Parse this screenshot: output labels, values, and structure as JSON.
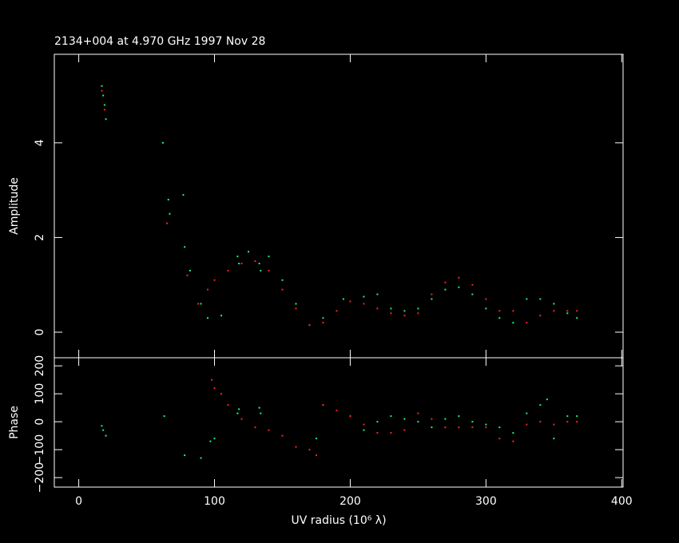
{
  "chart_data": [
    {
      "type": "scatter",
      "title": "2134+004 at 4.970 GHz 1997 Nov 28",
      "y_label": "Amplitude",
      "xlim": [
        -18,
        401
      ],
      "ylim": [
        -0.54,
        5.87
      ],
      "yticks": [
        0,
        2,
        4
      ],
      "series": [
        {
          "color": "#20f080",
          "x": [
            17,
            18,
            19,
            20,
            62,
            66,
            67,
            77,
            78,
            82,
            90,
            95,
            105,
            117,
            118,
            125,
            133,
            134,
            140,
            150,
            160,
            170,
            180,
            195,
            210,
            220,
            230,
            240,
            250,
            260,
            270,
            280,
            290,
            300,
            310,
            320,
            330,
            340,
            350,
            360,
            367
          ],
          "values": [
            5.2,
            5.0,
            4.8,
            4.5,
            4.0,
            2.8,
            2.5,
            2.9,
            1.8,
            1.3,
            0.6,
            0.3,
            0.35,
            1.6,
            1.45,
            1.7,
            1.45,
            1.3,
            1.6,
            1.1,
            0.6,
            0.15,
            0.3,
            0.7,
            0.75,
            0.8,
            0.5,
            0.45,
            0.5,
            0.7,
            0.9,
            0.95,
            0.8,
            0.5,
            0.3,
            0.2,
            0.7,
            0.7,
            0.6,
            0.4,
            0.3
          ]
        },
        {
          "color": "#ff2020",
          "x": [
            17,
            19,
            65,
            80,
            88,
            95,
            100,
            110,
            120,
            130,
            140,
            150,
            160,
            170,
            180,
            190,
            200,
            210,
            220,
            230,
            240,
            250,
            260,
            270,
            280,
            290,
            300,
            310,
            320,
            330,
            340,
            350,
            360,
            367
          ],
          "values": [
            5.1,
            4.7,
            2.3,
            1.2,
            0.6,
            0.9,
            1.1,
            1.3,
            1.45,
            1.5,
            1.3,
            0.9,
            0.5,
            0.15,
            0.2,
            0.45,
            0.65,
            0.6,
            0.5,
            0.4,
            0.35,
            0.4,
            0.8,
            1.05,
            1.15,
            1.0,
            0.7,
            0.45,
            0.45,
            0.2,
            0.35,
            0.45,
            0.45,
            0.45
          ]
        }
      ]
    },
    {
      "type": "scatter",
      "x_label": "UV radius  (10⁶ λ)",
      "y_label": "Phase",
      "xlim": [
        -18,
        401
      ],
      "xticks": [
        0,
        100,
        200,
        300,
        400
      ],
      "ylim": [
        -234,
        229
      ],
      "yticks": [
        {
          "value": -200,
          "label": "−200"
        },
        {
          "value": -100,
          "label": "−100"
        },
        0,
        100,
        200
      ],
      "series": [
        {
          "color": "#20f080",
          "x": [
            17,
            18,
            20,
            63,
            78,
            90,
            97,
            100,
            117,
            118,
            133,
            134,
            175,
            180,
            200,
            210,
            220,
            230,
            240,
            250,
            260,
            270,
            280,
            290,
            300,
            310,
            320,
            330,
            340,
            345,
            350,
            360,
            367
          ],
          "values": [
            -15,
            -30,
            -50,
            20,
            -120,
            -130,
            -70,
            -60,
            30,
            45,
            50,
            30,
            -60,
            60,
            20,
            -30,
            0,
            20,
            10,
            0,
            -20,
            10,
            20,
            0,
            -10,
            -20,
            -40,
            30,
            60,
            80,
            -60,
            20,
            20
          ]
        },
        {
          "color": "#ff2020",
          "x": [
            98,
            100,
            105,
            110,
            120,
            130,
            140,
            150,
            160,
            170,
            175,
            180,
            190,
            200,
            210,
            220,
            230,
            240,
            250,
            260,
            270,
            280,
            290,
            300,
            310,
            320,
            330,
            340,
            350,
            360,
            367
          ],
          "values": [
            150,
            120,
            100,
            60,
            10,
            -20,
            -30,
            -50,
            -90,
            -100,
            -120,
            60,
            40,
            20,
            -10,
            -40,
            -40,
            -30,
            30,
            10,
            -20,
            -20,
            -20,
            -20,
            -60,
            -70,
            -10,
            0,
            -10,
            0,
            0
          ]
        }
      ]
    }
  ]
}
